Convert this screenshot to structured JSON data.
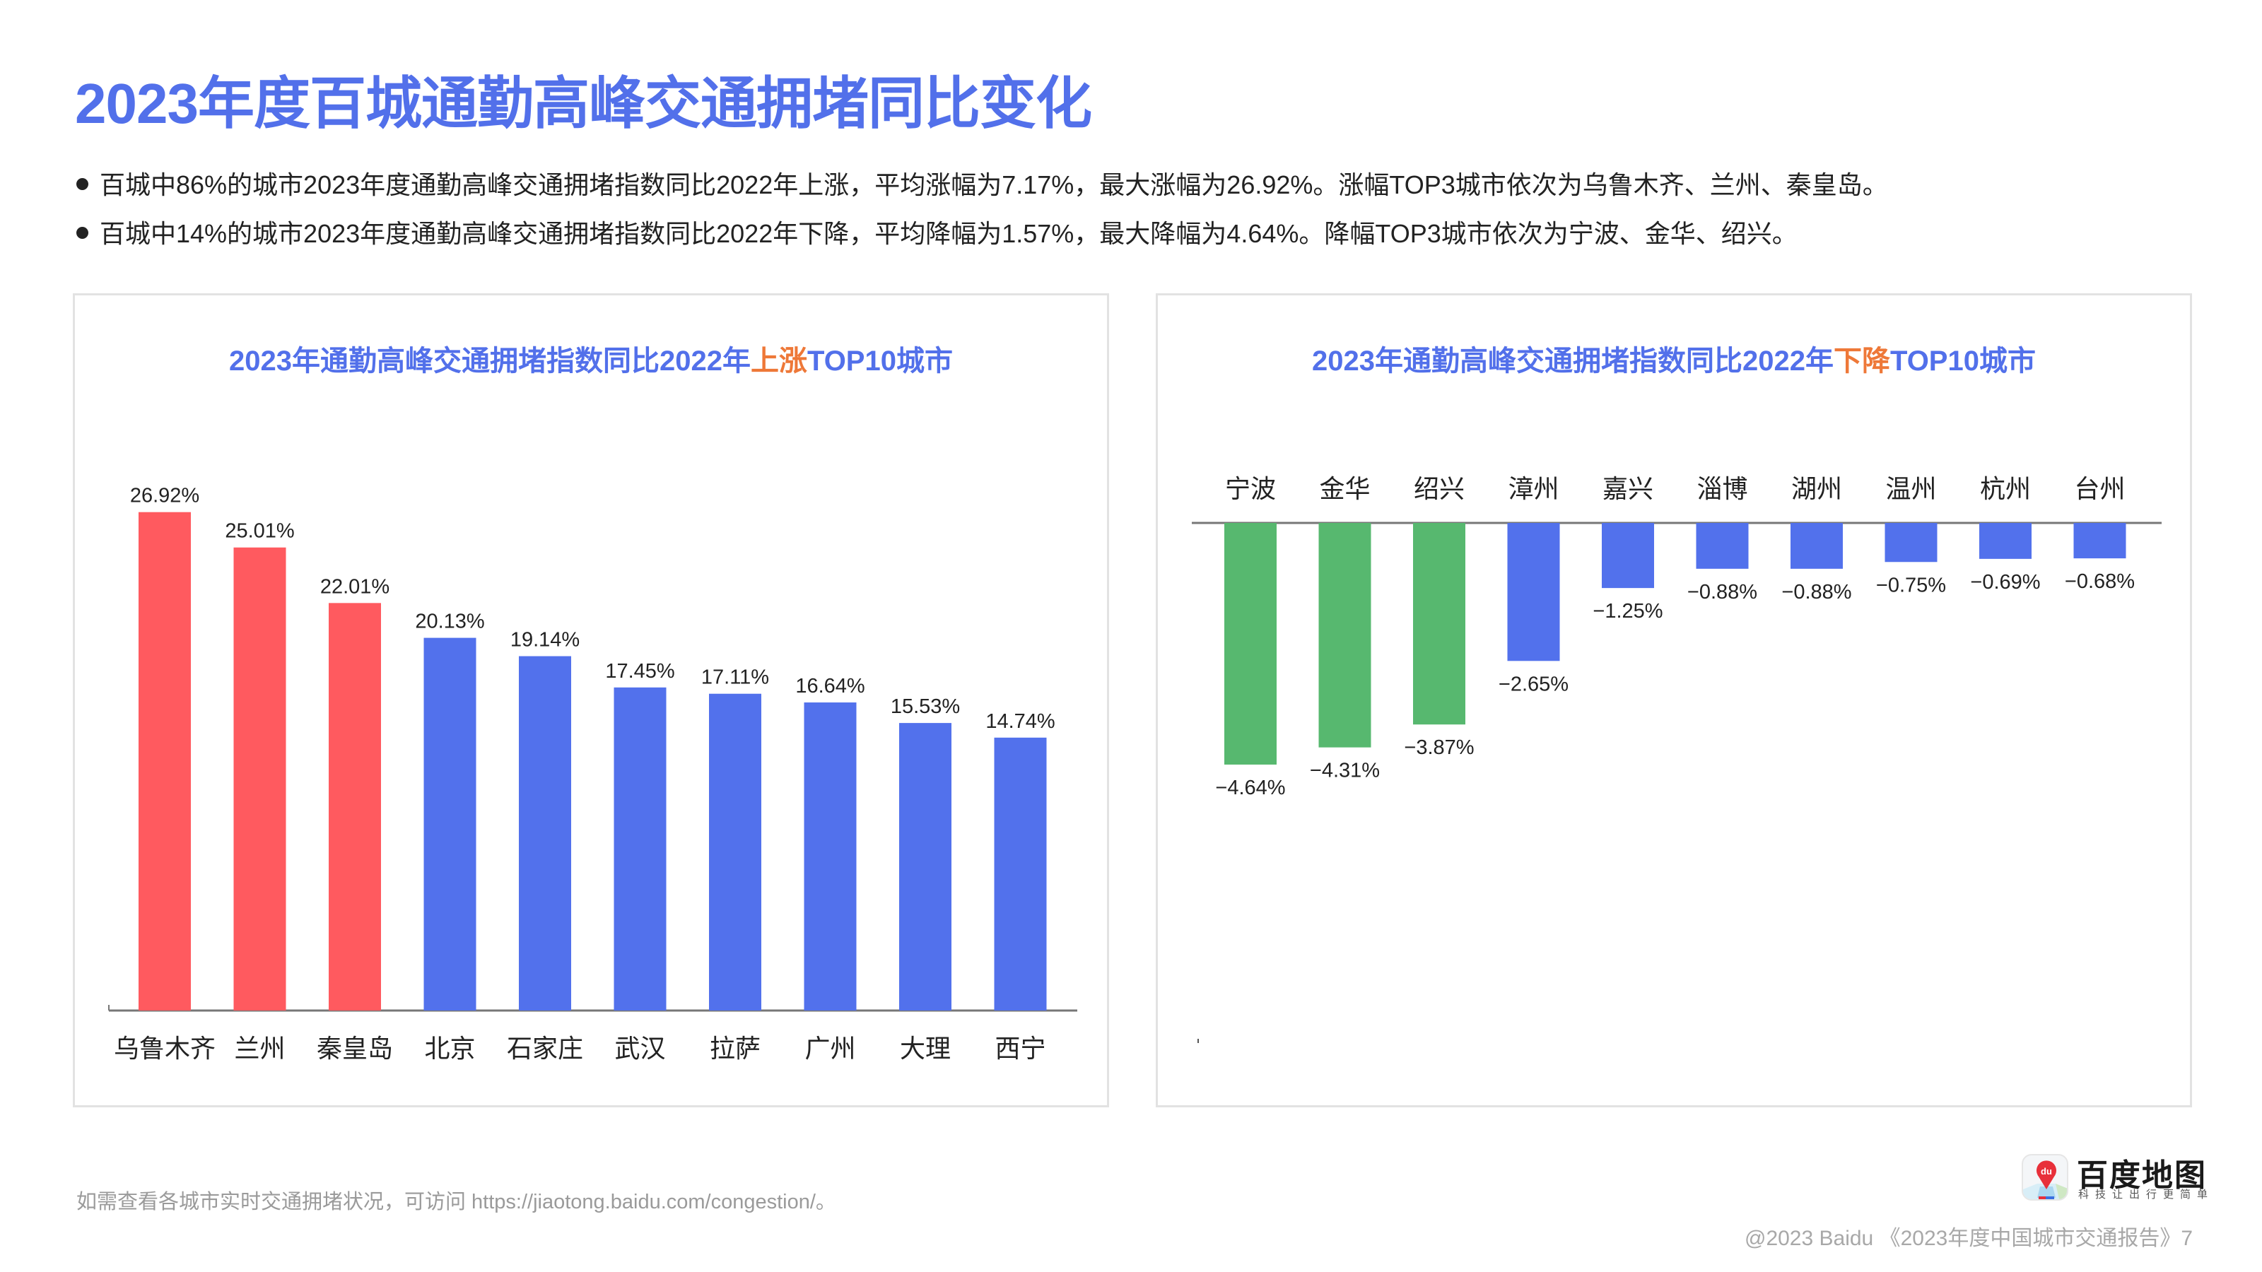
{
  "page": {
    "title": "2023年度百城通勤高峰交通拥堵同比变化",
    "bullets": [
      "百城中86%的城市2023年度通勤高峰交通拥堵指数同比2022年上涨，平均涨幅为7.17%，最大涨幅为26.92%。涨幅TOP3城市依次为乌鲁木齐、兰州、秦皇岛。",
      "百城中14%的城市2023年度通勤高峰交通拥堵指数同比2022年下降，平均降幅为1.57%，最大降幅为4.64%。降幅TOP3城市依次为宁波、金华、绍兴。"
    ],
    "footer_note": "如需查看各城市实时交通拥堵状况，可访问 https://jiaotong.baidu.com/congestion/。",
    "copyright": "@2023 Baidu 《2023年度中国城市交通报告》7",
    "logo": {
      "brand": "百度地图",
      "slogan": "科技让出行更简单",
      "icon_text": "du"
    }
  },
  "colors": {
    "title": "#5270EA",
    "highlight": "#EE7838",
    "top3_rise": "#FF5A5F",
    "top3_fall": "#57B86F",
    "other": "#5271EC",
    "axis": "#777777"
  },
  "chart_data": [
    {
      "type": "bar",
      "title_prefix": "2023年通勤高峰交通拥堵指数同比2022年",
      "title_highlight": "上涨",
      "title_suffix": "TOP10城市",
      "categories": [
        "乌鲁木齐",
        "兰州",
        "秦皇岛",
        "北京",
        "石家庄",
        "武汉",
        "拉萨",
        "广州",
        "大理",
        "西宁"
      ],
      "values": [
        26.92,
        25.01,
        22.01,
        20.13,
        19.14,
        17.45,
        17.11,
        16.64,
        15.53,
        14.74
      ],
      "labels": [
        "26.92%",
        "25.01%",
        "22.01%",
        "20.13%",
        "19.14%",
        "17.45%",
        "17.11%",
        "16.64%",
        "15.53%",
        "14.74%"
      ],
      "highlight_count": 3,
      "unit": "%",
      "xlabel": "",
      "ylabel": "",
      "ylim": [
        0,
        30
      ],
      "grid": false,
      "legend": "none"
    },
    {
      "type": "bar",
      "title_prefix": "2023年通勤高峰交通拥堵指数同比2022年",
      "title_highlight": "下降",
      "title_suffix": "TOP10城市",
      "categories": [
        "宁波",
        "金华",
        "绍兴",
        "漳州",
        "嘉兴",
        "淄博",
        "湖州",
        "温州",
        "杭州",
        "台州"
      ],
      "values": [
        -4.64,
        -4.31,
        -3.87,
        -2.65,
        -1.25,
        -0.88,
        -0.88,
        -0.75,
        -0.69,
        -0.68
      ],
      "labels": [
        "−4.64%",
        "−4.31%",
        "−3.87%",
        "−2.65%",
        "−1.25%",
        "−0.88%",
        "−0.88%",
        "−0.75%",
        "−0.69%",
        "−0.68%"
      ],
      "highlight_count": 3,
      "unit": "%",
      "xlabel": "",
      "ylabel": "",
      "ylim": [
        -5,
        0
      ],
      "grid": false,
      "legend": "none"
    }
  ]
}
